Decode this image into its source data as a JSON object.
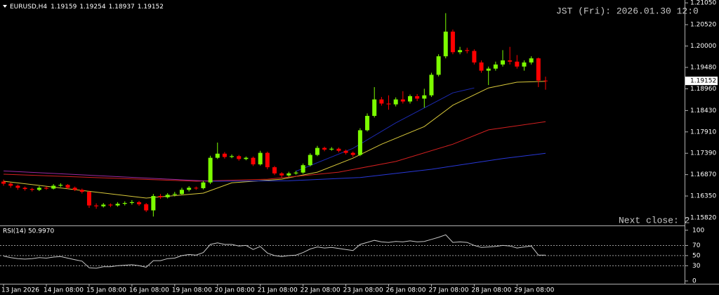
{
  "chart_data": {
    "type": "candlestick",
    "symbol": "EURUSD,H4",
    "clock": "JST (Fri): 2026.01.30 12:0",
    "countdown": "Next close: 2",
    "up_color": "#7cfc00",
    "down_color": "#ff0000",
    "open": [
      1.167,
      1.1665,
      1.166,
      1.1655,
      1.1652,
      1.165,
      1.1655,
      1.1653,
      1.166,
      1.1662,
      1.1655,
      1.165,
      1.1645,
      1.1612,
      1.161,
      1.1614,
      1.1612,
      1.1616,
      1.1618,
      1.162,
      1.1615,
      1.16,
      1.1635,
      1.1632,
      1.1638,
      1.164,
      1.165,
      1.1655,
      1.1654,
      1.1668,
      1.1728,
      1.1738,
      1.173,
      1.1732,
      1.1725,
      1.1728,
      1.1712,
      1.174,
      1.1705,
      1.169,
      1.1685,
      1.169,
      1.1692,
      1.171,
      1.1735,
      1.1752,
      1.1748,
      1.175,
      1.1745,
      1.174,
      1.1735,
      1.1795,
      1.183,
      1.187,
      1.186,
      1.1858,
      1.187,
      1.1865,
      1.1878,
      1.1872,
      1.188,
      1.193,
      1.1975,
      1.2035,
      1.1985,
      1.199,
      1.1988,
      1.196,
      1.194,
      1.1945,
      1.1955,
      1.1965,
      1.1962,
      1.195,
      1.196,
      1.197,
      1.19159
    ],
    "high": [
      1.1675,
      1.1668,
      1.1663,
      1.1658,
      1.1655,
      1.1659,
      1.1658,
      1.1664,
      1.1666,
      1.1664,
      1.1658,
      1.1653,
      1.1648,
      1.1617,
      1.1618,
      1.1617,
      1.162,
      1.1622,
      1.1625,
      1.1623,
      1.1618,
      1.164,
      1.164,
      1.1642,
      1.1645,
      1.1655,
      1.1659,
      1.1658,
      1.1672,
      1.1733,
      1.1765,
      1.1742,
      1.1736,
      1.1735,
      1.1731,
      1.1731,
      1.1745,
      1.1743,
      1.1708,
      1.1693,
      1.1694,
      1.1696,
      1.1714,
      1.1739,
      1.1757,
      1.1755,
      1.1754,
      1.1753,
      1.1748,
      1.1743,
      1.18,
      1.1836,
      1.19,
      1.1876,
      1.188,
      1.1875,
      1.189,
      1.1882,
      1.1883,
      1.1896,
      1.1935,
      1.198,
      1.208,
      1.204,
      1.1998,
      1.1996,
      1.1992,
      1.1965,
      1.195,
      1.1962,
      1.199,
      1.1998,
      1.1978,
      1.1965,
      1.1975,
      1.1972,
      1.19254
    ],
    "low": [
      1.166,
      1.1655,
      1.165,
      1.1648,
      1.1646,
      1.1647,
      1.165,
      1.1651,
      1.1657,
      1.1652,
      1.1647,
      1.1641,
      1.1606,
      1.1604,
      1.1607,
      1.1608,
      1.1609,
      1.1612,
      1.1614,
      1.1611,
      1.1596,
      1.1585,
      1.1628,
      1.1629,
      1.1634,
      1.1637,
      1.1646,
      1.165,
      1.1651,
      1.1664,
      1.1725,
      1.1726,
      1.1727,
      1.1721,
      1.1722,
      1.1708,
      1.1709,
      1.17,
      1.1686,
      1.168,
      1.1682,
      1.1687,
      1.1689,
      1.1707,
      1.1732,
      1.1744,
      1.1745,
      1.1741,
      1.1736,
      1.173,
      1.1732,
      1.1792,
      1.1826,
      1.1855,
      1.1845,
      1.1853,
      1.186,
      1.186,
      1.1866,
      1.185,
      1.1876,
      1.1926,
      1.197,
      1.198,
      1.198,
      1.1982,
      1.1955,
      1.1935,
      1.1905,
      1.194,
      1.195,
      1.1955,
      1.1945,
      1.194,
      1.1955,
      1.19,
      1.18937
    ],
    "close": [
      1.1665,
      1.166,
      1.1655,
      1.1652,
      1.165,
      1.1655,
      1.1653,
      1.166,
      1.1662,
      1.1655,
      1.165,
      1.1645,
      1.1612,
      1.161,
      1.1614,
      1.1612,
      1.1616,
      1.1618,
      1.162,
      1.1615,
      1.16,
      1.1635,
      1.1632,
      1.1638,
      1.164,
      1.165,
      1.1655,
      1.1654,
      1.1668,
      1.1728,
      1.1738,
      1.173,
      1.1732,
      1.1725,
      1.1728,
      1.1712,
      1.174,
      1.1705,
      1.169,
      1.1685,
      1.169,
      1.1692,
      1.171,
      1.1735,
      1.1752,
      1.1748,
      1.175,
      1.1745,
      1.174,
      1.1735,
      1.1795,
      1.183,
      1.187,
      1.186,
      1.1858,
      1.187,
      1.1865,
      1.1878,
      1.1872,
      1.188,
      1.193,
      1.1975,
      1.2035,
      1.1985,
      1.199,
      1.1988,
      1.196,
      1.194,
      1.1945,
      1.1955,
      1.1965,
      1.1962,
      1.195,
      1.196,
      1.197,
      1.1916,
      1.19152
    ],
    "xlim": [
      -0.5,
      95.5
    ],
    "xticks": [
      {
        "value": 0,
        "label": "13 Jan 2026"
      },
      {
        "value": 6,
        "label": "14 Jan 08:00"
      },
      {
        "value": 12,
        "label": "15 Jan 08:00"
      },
      {
        "value": 18,
        "label": "16 Jan 08:00"
      },
      {
        "value": 24,
        "label": "19 Jan 08:00"
      },
      {
        "value": 30,
        "label": "20 Jan 08:00"
      },
      {
        "value": 36,
        "label": "21 Jan 08:00"
      },
      {
        "value": 42,
        "label": "22 Jan 08:00"
      },
      {
        "value": 48,
        "label": "23 Jan 08:00"
      },
      {
        "value": 54,
        "label": "26 Jan 08:00"
      },
      {
        "value": 60,
        "label": "27 Jan 08:00"
      },
      {
        "value": 66,
        "label": "28 Jan 08:00"
      },
      {
        "value": 72,
        "label": "29 Jan 08:00"
      }
    ],
    "ylim": [
      1.1565,
      1.2112
    ],
    "yticks": [
      {
        "value": 1.2105,
        "label": "1.21050"
      },
      {
        "value": 1.2052,
        "label": "1.20520"
      },
      {
        "value": 1.2,
        "label": "1.20000"
      },
      {
        "value": 1.1948,
        "label": "1.19480"
      },
      {
        "value": 1.1896,
        "label": "1.18960"
      },
      {
        "value": 1.1843,
        "label": "1.18430"
      },
      {
        "value": 1.1791,
        "label": "1.17910"
      },
      {
        "value": 1.1739,
        "label": "1.17390"
      },
      {
        "value": 1.1687,
        "label": "1.16870"
      },
      {
        "value": 1.1635,
        "label": "1.16350"
      },
      {
        "value": 1.1582,
        "label": "1.15820"
      }
    ],
    "overlays": [
      {
        "color": "#d8c83a",
        "x": [
          0,
          20,
          28,
          32,
          39,
          44,
          49,
          53,
          59,
          63,
          68,
          72,
          76
        ],
        "values": [
          1.1671,
          1.163,
          1.1642,
          1.1667,
          1.1676,
          1.1693,
          1.1727,
          1.1761,
          1.1804,
          1.1856,
          1.1898,
          1.1912,
          1.1914
        ]
      },
      {
        "color": "#d42020",
        "x": [
          0,
          27,
          37,
          47,
          55,
          63,
          68,
          76
        ],
        "values": [
          1.1688,
          1.1671,
          1.1676,
          1.1693,
          1.1719,
          1.1761,
          1.1796,
          1.1816
        ]
      },
      {
        "color": "#9a2aa0",
        "x": [
          0,
          15,
          29
        ],
        "values": [
          1.1696,
          1.1683,
          1.1671
        ]
      },
      {
        "color": "#2838d8",
        "x": [
          29,
          40,
          50,
          60,
          70,
          76
        ],
        "values": [
          1.1671,
          1.1672,
          1.168,
          1.17,
          1.1726,
          1.1739
        ]
      },
      {
        "color": "#1c2ab0",
        "x": [
          41,
          49,
          55,
          63,
          66
        ],
        "values": [
          1.1695,
          1.1751,
          1.1813,
          1.1886,
          1.1898
        ]
      }
    ],
    "rsi": {
      "title": "RSI(14) 50.9970",
      "color": "#c8c8c8",
      "ylim": [
        -5,
        108
      ],
      "yticks": [
        100,
        70,
        50,
        30,
        0
      ],
      "levels": [
        70,
        50,
        30
      ],
      "values": [
        49,
        46,
        44,
        43,
        44,
        46,
        45,
        47,
        48,
        45,
        42,
        39,
        26,
        25,
        28,
        28,
        30,
        31,
        32,
        30,
        27,
        40,
        40,
        44,
        45,
        50,
        52,
        51,
        56,
        72,
        75,
        72,
        72,
        69,
        70,
        62,
        68,
        55,
        50,
        48,
        50,
        51,
        56,
        63,
        67,
        65,
        66,
        64,
        62,
        60,
        72,
        76,
        80,
        77,
        76,
        78,
        77,
        79,
        77,
        78,
        82,
        86,
        91,
        76,
        77,
        76,
        70,
        66,
        67,
        68,
        70,
        69,
        65,
        67,
        69,
        51,
        50.997
      ]
    }
  }
}
